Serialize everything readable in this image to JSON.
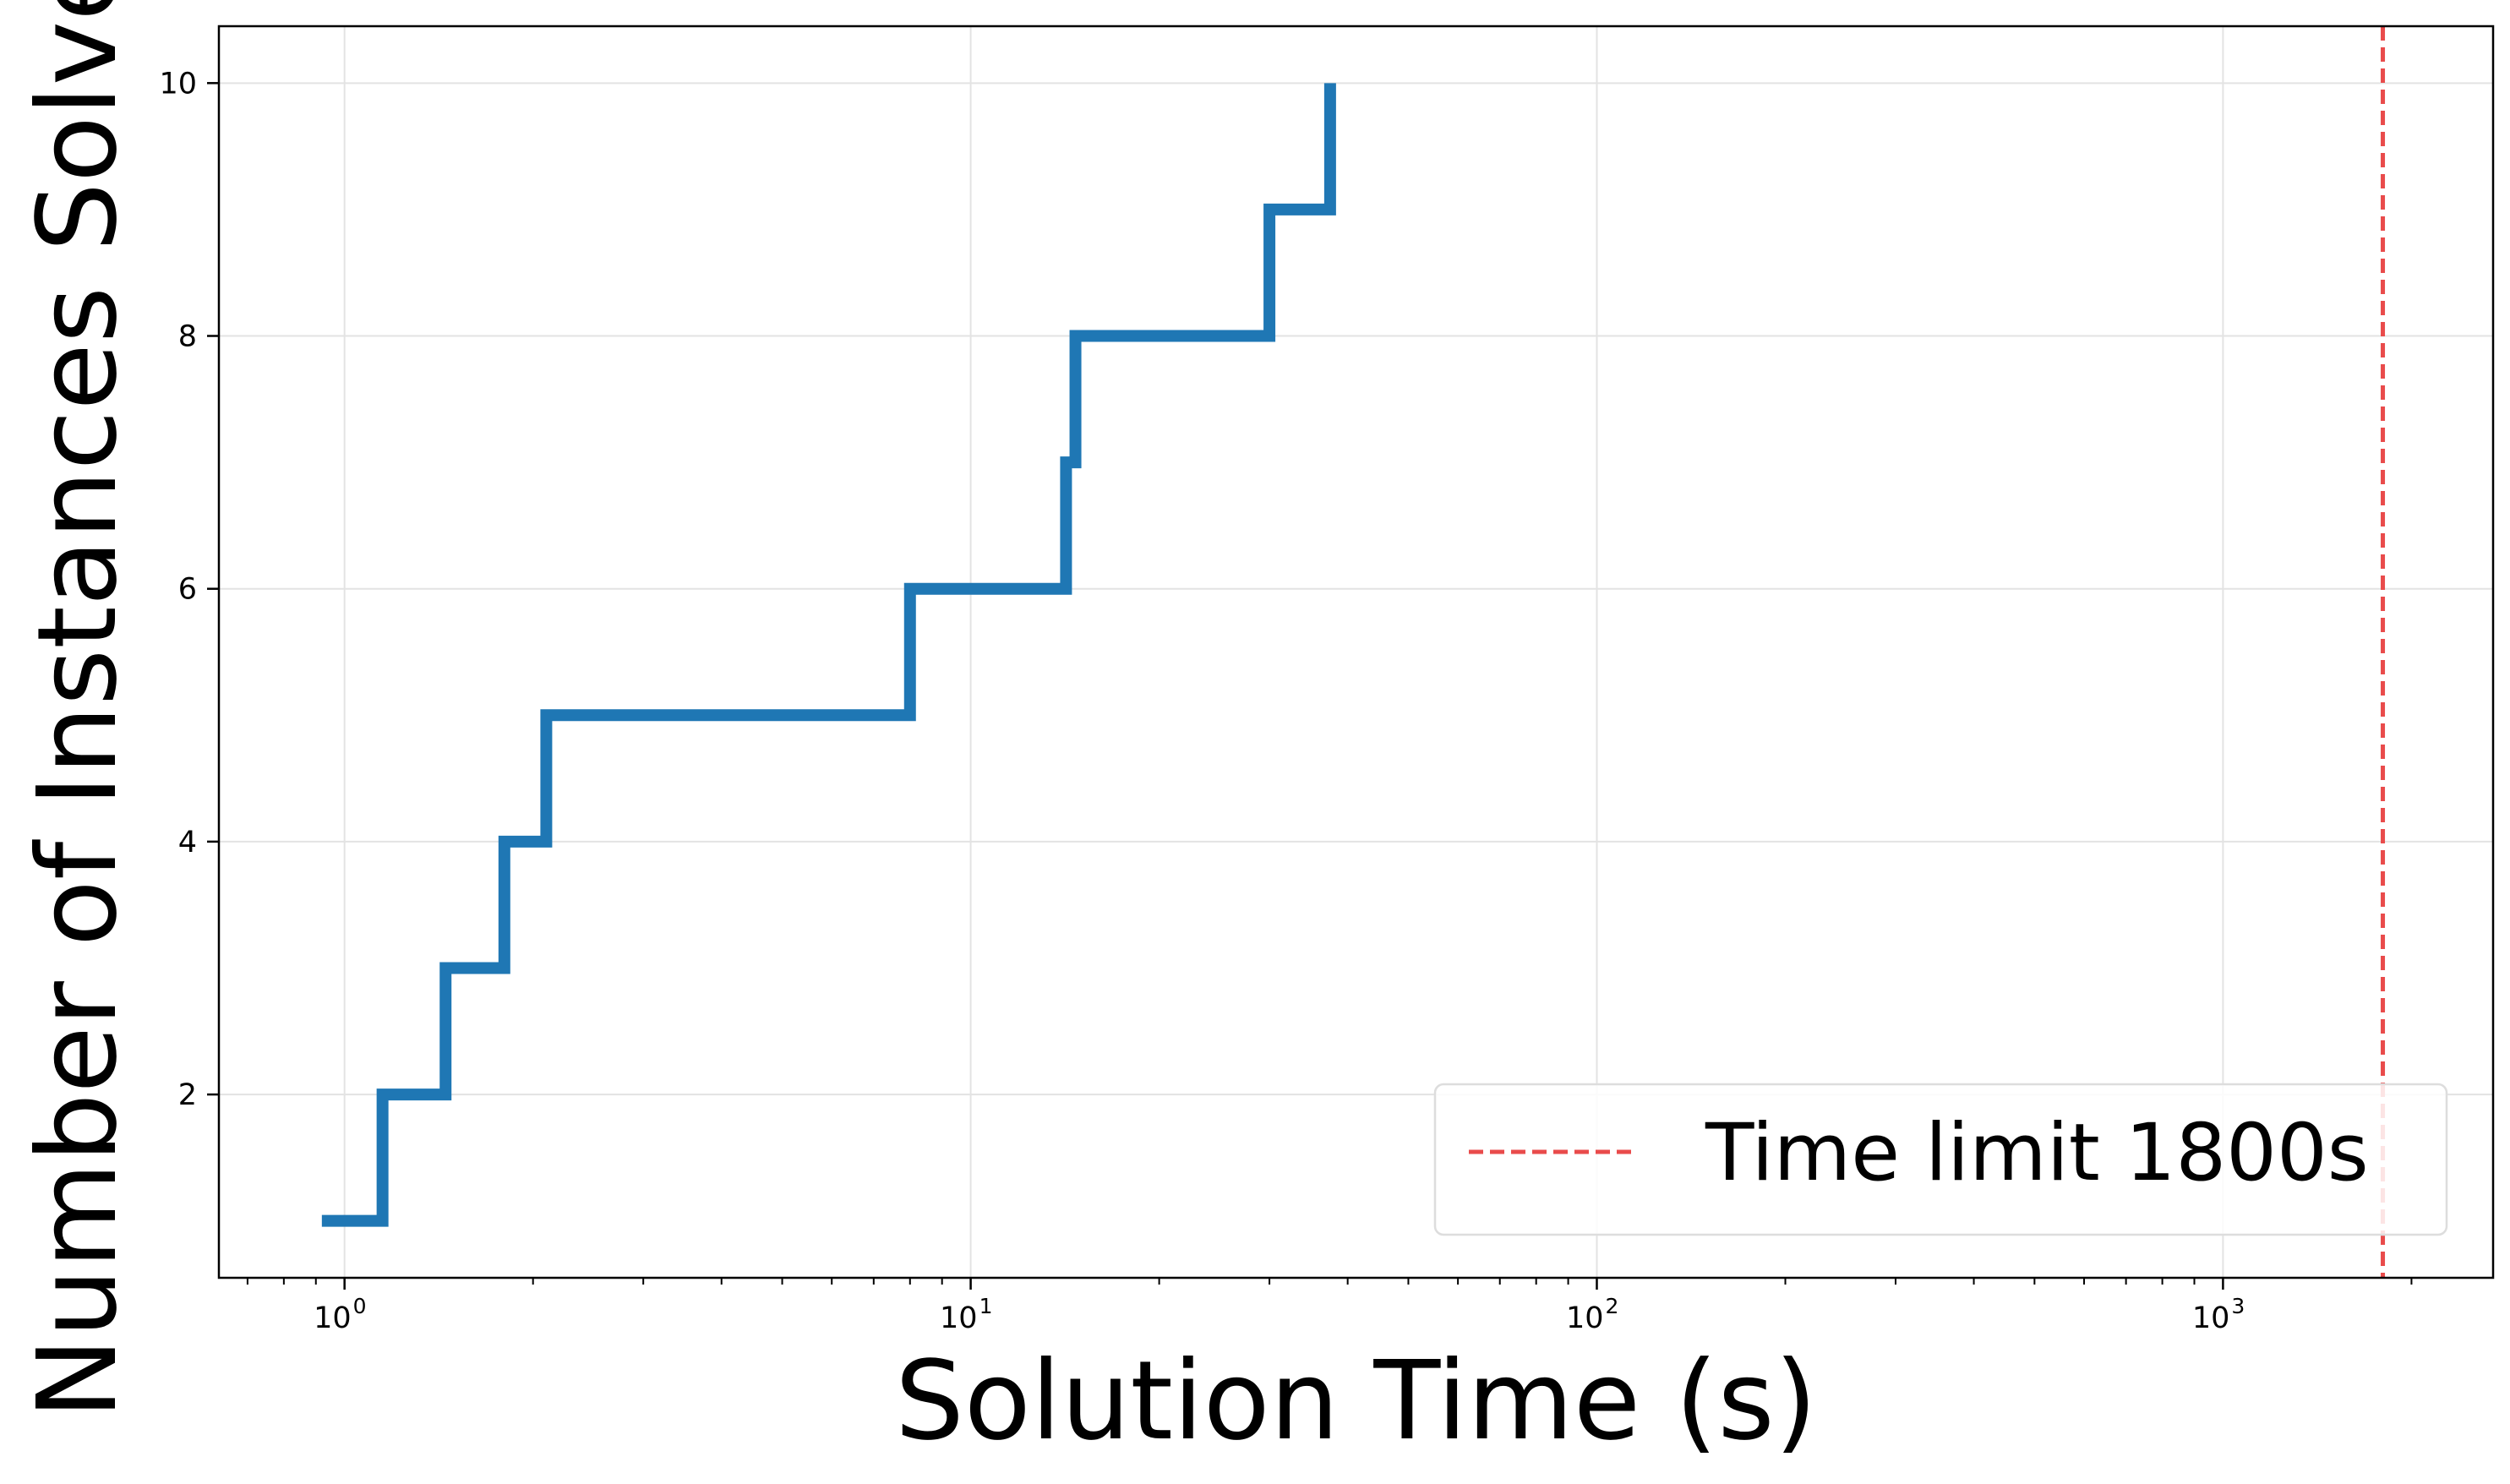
{
  "chart_data": {
    "type": "line",
    "step": "post",
    "x_scale": "log",
    "grid": true,
    "xlabel": "Solution Time (s)",
    "ylabel": "Number of Instances Solved",
    "xlim": [
      0.63,
      2700
    ],
    "ylim": [
      0.55,
      10.45
    ],
    "x_ticks": [
      {
        "base": "10",
        "exp": "0",
        "value": 1
      },
      {
        "base": "10",
        "exp": "1",
        "value": 10
      },
      {
        "base": "10",
        "exp": "2",
        "value": 100
      },
      {
        "base": "10",
        "exp": "3",
        "value": 1000
      }
    ],
    "y_ticks": [
      {
        "label": "2",
        "value": 2
      },
      {
        "label": "4",
        "value": 4
      },
      {
        "label": "6",
        "value": 6
      },
      {
        "label": "8",
        "value": 8
      },
      {
        "label": "10",
        "value": 10
      }
    ],
    "series": [
      {
        "color": "#1f77b4",
        "x": [
          0.92,
          1.15,
          1.45,
          1.8,
          2.1,
          8.0,
          14.2,
          14.7,
          30.0,
          37.5
        ],
        "y": [
          1,
          2,
          3,
          4,
          5,
          6,
          7,
          8,
          9,
          10
        ]
      }
    ],
    "reference_lines": [
      {
        "orientation": "vertical",
        "x": 1800,
        "style": "dashed",
        "color": "#e94b4b",
        "label": "Time limit 1800s"
      }
    ],
    "legend": {
      "position": "lower-right"
    }
  }
}
